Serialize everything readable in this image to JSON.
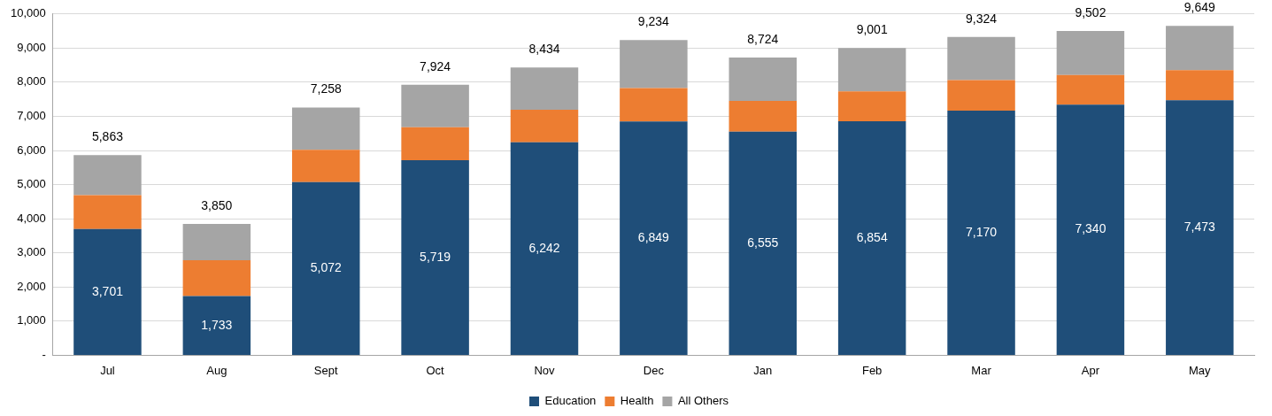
{
  "chart_data": {
    "type": "bar",
    "stacked": true,
    "categories": [
      "Jul",
      "Aug",
      "Sept",
      "Oct",
      "Nov",
      "Dec",
      "Jan",
      "Feb",
      "Mar",
      "Apr",
      "May"
    ],
    "series": [
      {
        "name": "Education",
        "color": "#1f4e79",
        "values": [
          3701,
          1733,
          5072,
          5719,
          6242,
          6849,
          6555,
          6854,
          7170,
          7340,
          7473
        ],
        "value_labels": [
          "3,701",
          "1,733",
          "5,072",
          "5,719",
          "6,242",
          "6,849",
          "6,555",
          "6,854",
          "7,170",
          "7,340",
          "7,473"
        ]
      },
      {
        "name": "Health",
        "color": "#ed7d31",
        "values": [
          990,
          1050,
          950,
          960,
          950,
          980,
          900,
          880,
          890,
          870,
          880
        ]
      },
      {
        "name": "All Others",
        "color": "#a5a5a5",
        "values": [
          1172,
          1067,
          1236,
          1245,
          1242,
          1405,
          1269,
          1267,
          1264,
          1292,
          1296
        ]
      }
    ],
    "totals": [
      "5,863",
      "3,850",
      "7,258",
      "7,924",
      "8,434",
      "9,234",
      "8,724",
      "9,001",
      "9,324",
      "9,502",
      "9,649"
    ],
    "ylim": [
      0,
      10000
    ],
    "yticks": [
      {
        "value": 0,
        "label": "-"
      },
      {
        "value": 1000,
        "label": "1,000"
      },
      {
        "value": 2000,
        "label": "2,000"
      },
      {
        "value": 3000,
        "label": "3,000"
      },
      {
        "value": 4000,
        "label": "4,000"
      },
      {
        "value": 5000,
        "label": "5,000"
      },
      {
        "value": 6000,
        "label": "6,000"
      },
      {
        "value": 7000,
        "label": "7,000"
      },
      {
        "value": 8000,
        "label": "8,000"
      },
      {
        "value": 9000,
        "label": "9,000"
      },
      {
        "value": 10000,
        "label": "10,000"
      }
    ],
    "grid": "y",
    "legend": "bottom"
  }
}
